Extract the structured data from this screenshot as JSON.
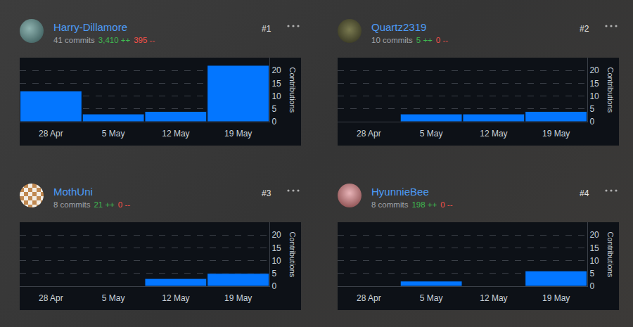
{
  "chart_data": [
    {
      "type": "bar",
      "title": "Harry-Dillamore",
      "subtitle": "41 commits",
      "annotations": [
        "3,410 ++",
        "395 --",
        "#1"
      ],
      "categories": [
        "28 Apr",
        "5 May",
        "12 May",
        "19 May"
      ],
      "values": [
        12,
        3,
        4,
        22
      ],
      "color": "#0376ff",
      "y_label": "Contributions",
      "ylim": [
        0,
        25
      ],
      "yticks": [
        0,
        5,
        10,
        15,
        20
      ],
      "grid": true
    },
    {
      "type": "bar",
      "title": "Quartz2319",
      "subtitle": "10 commits",
      "annotations": [
        "5 ++",
        "0 --",
        "#2"
      ],
      "categories": [
        "28 Apr",
        "5 May",
        "12 May",
        "19 May"
      ],
      "values": [
        0,
        3,
        3,
        4
      ],
      "color": "#0376ff",
      "y_label": "Contributions",
      "ylim": [
        0,
        25
      ],
      "yticks": [
        0,
        5,
        10,
        15,
        20
      ],
      "grid": true
    },
    {
      "type": "bar",
      "title": "MothUni",
      "subtitle": "8 commits",
      "annotations": [
        "21 ++",
        "0 --",
        "#3"
      ],
      "categories": [
        "28 Apr",
        "5 May",
        "12 May",
        "19 May"
      ],
      "values": [
        0,
        0,
        3,
        5
      ],
      "color": "#0376ff",
      "y_label": "Contributions",
      "ylim": [
        0,
        25
      ],
      "yticks": [
        0,
        5,
        10,
        15,
        20
      ],
      "grid": true
    },
    {
      "type": "bar",
      "title": "HyunnieBee",
      "subtitle": "8 commits",
      "annotations": [
        "198 ++",
        "0 --",
        "#4"
      ],
      "categories": [
        "28 Apr",
        "5 May",
        "12 May",
        "19 May"
      ],
      "values": [
        0,
        2,
        0,
        6
      ],
      "color": "#0376ff",
      "y_label": "Contributions",
      "ylim": [
        0,
        25
      ],
      "yticks": [
        0,
        5,
        10,
        15,
        20
      ],
      "grid": true
    }
  ]
}
